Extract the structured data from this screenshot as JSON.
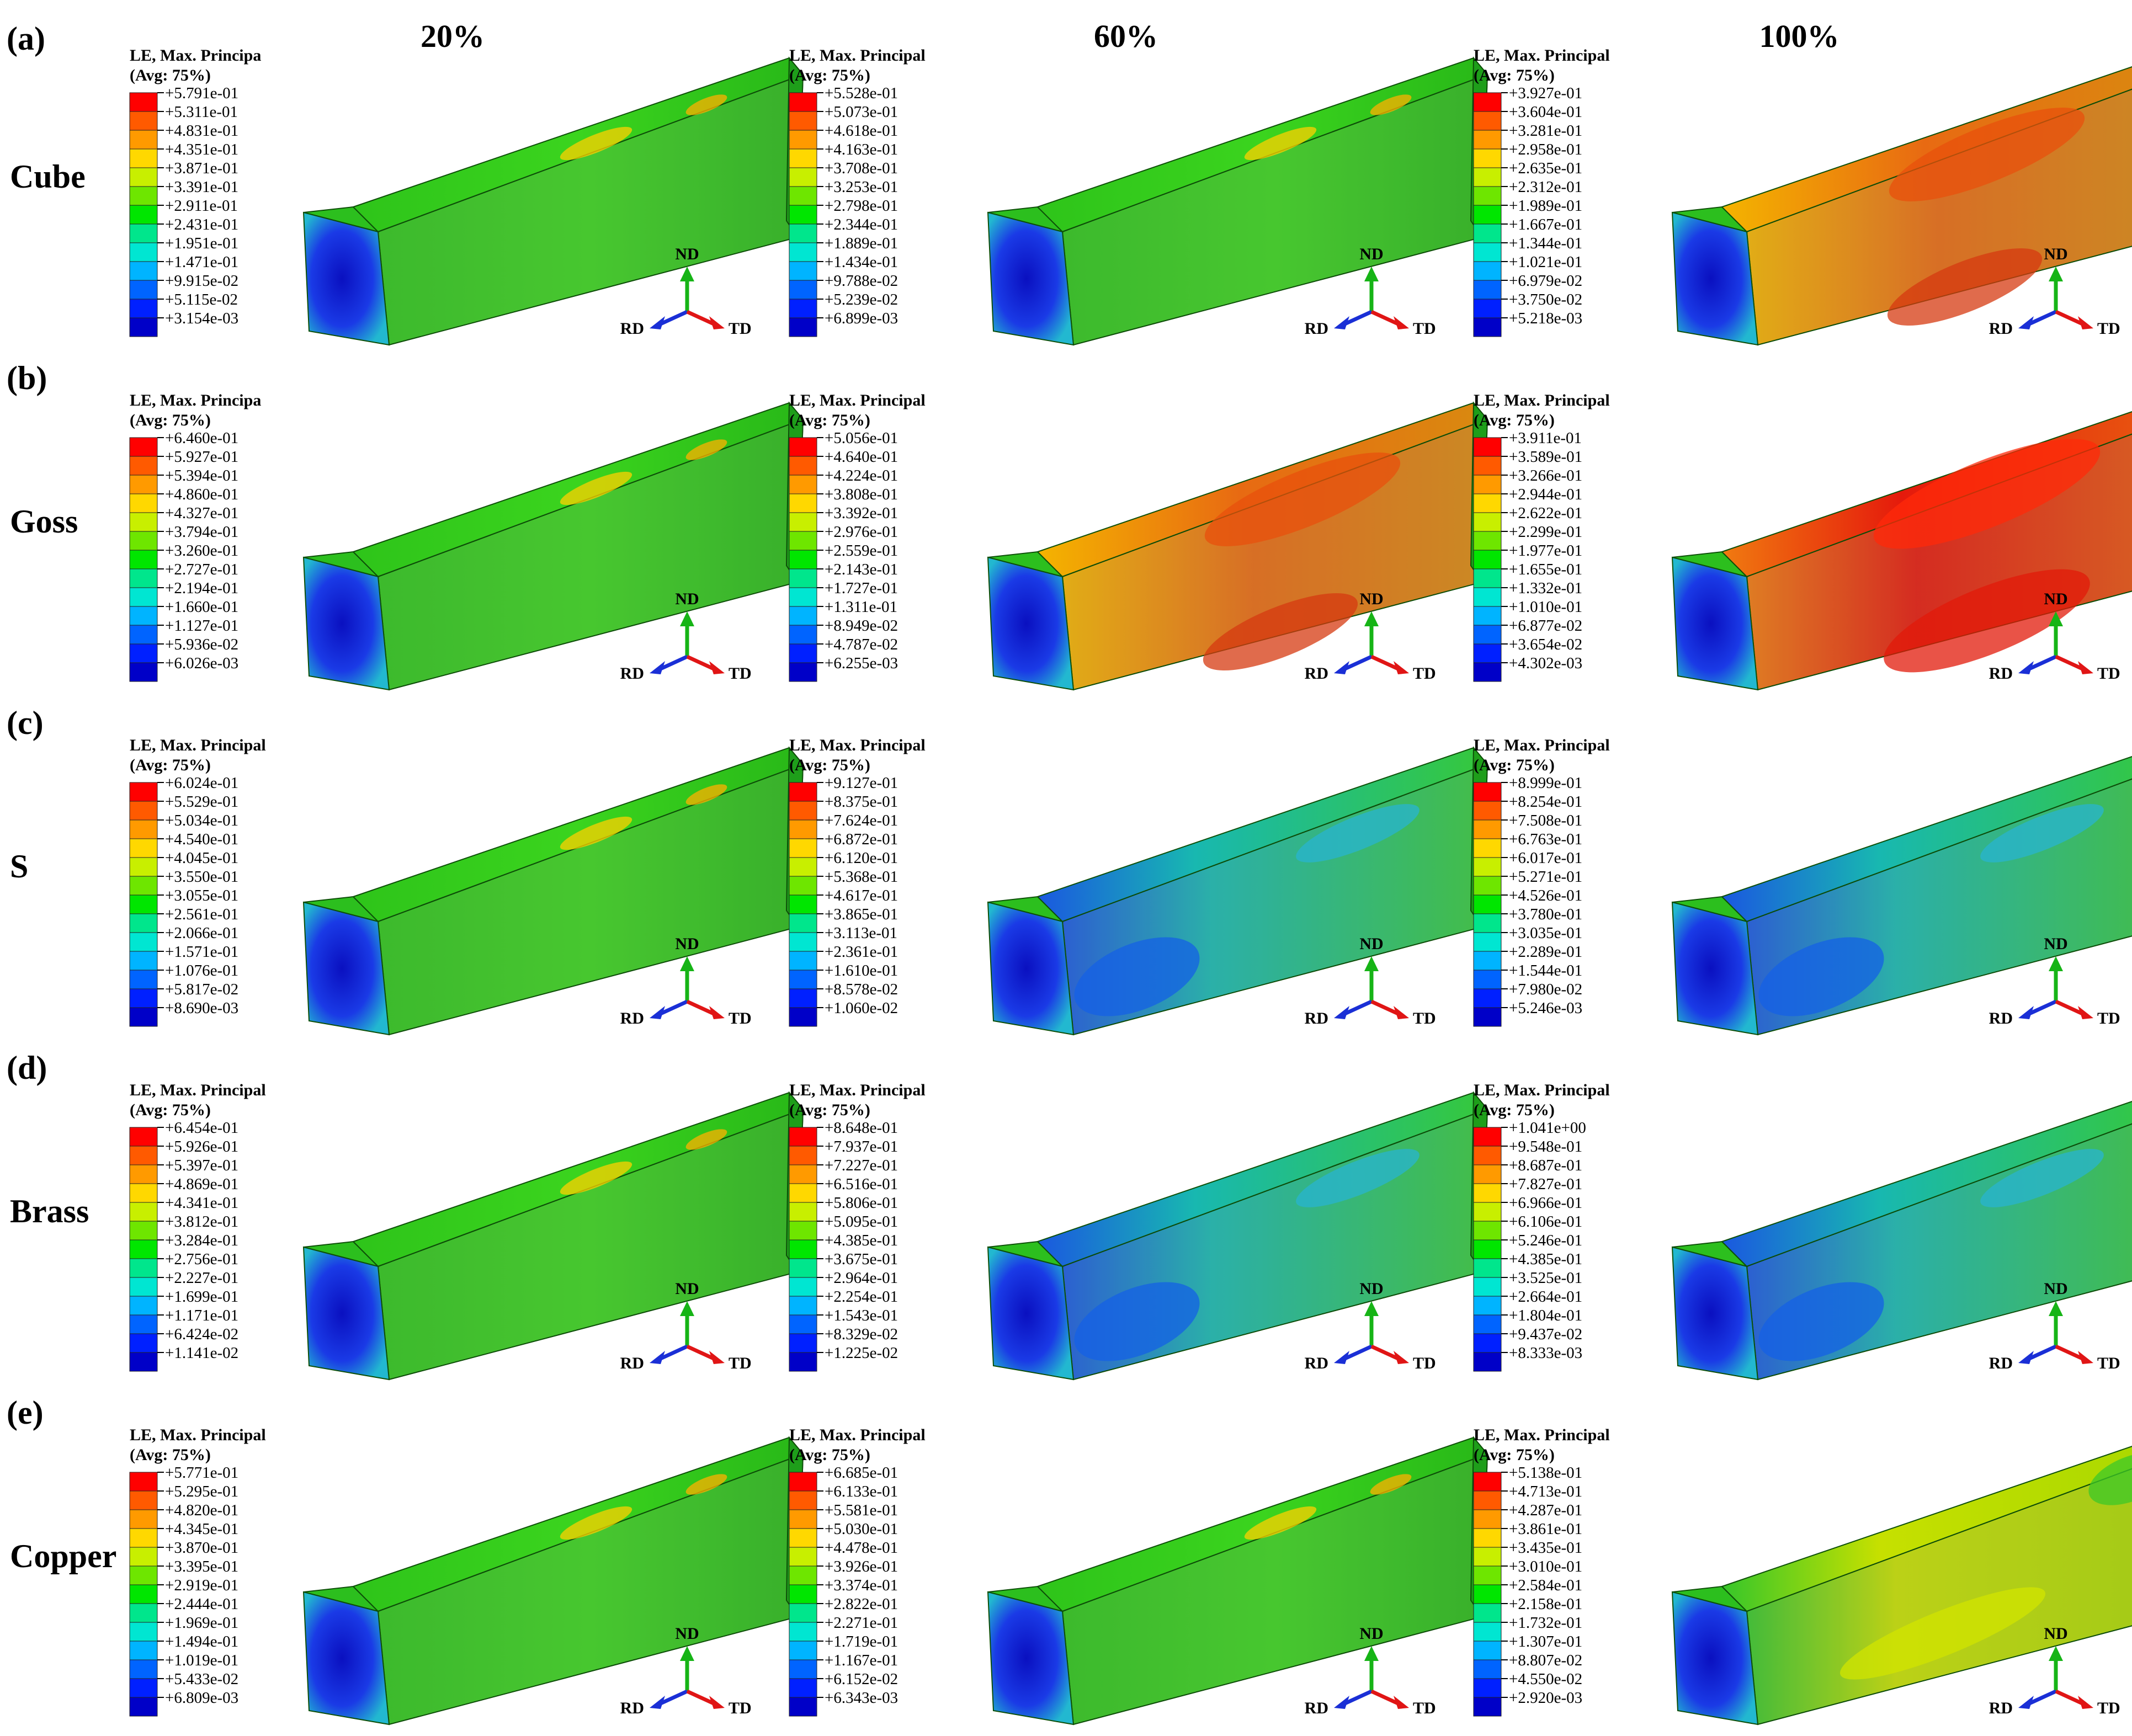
{
  "columns": [
    "20%",
    "60%",
    "100%"
  ],
  "rows": [
    {
      "tag": "(a)",
      "name": "Cube",
      "legends": [
        {
          "title": "LE, Max. Principa",
          "avg": "(Avg: 75%)",
          "values": [
            "+5.791e-01",
            "+5.311e-01",
            "+4.831e-01",
            "+4.351e-01",
            "+3.871e-01",
            "+3.391e-01",
            "+2.911e-01",
            "+2.431e-01",
            "+1.951e-01",
            "+1.471e-01",
            "+9.915e-02",
            "+5.115e-02",
            "+3.154e-03"
          ]
        },
        {
          "title": "LE, Max. Principal",
          "avg": "(Avg: 75%)",
          "values": [
            "+5.528e-01",
            "+5.073e-01",
            "+4.618e-01",
            "+4.163e-01",
            "+3.708e-01",
            "+3.253e-01",
            "+2.798e-01",
            "+2.344e-01",
            "+1.889e-01",
            "+1.434e-01",
            "+9.788e-02",
            "+5.239e-02",
            "+6.899e-03"
          ]
        },
        {
          "title": "LE, Max. Principal",
          "avg": "(Avg: 75%)",
          "values": [
            "+3.927e-01",
            "+3.604e-01",
            "+3.281e-01",
            "+2.958e-01",
            "+2.635e-01",
            "+2.312e-01",
            "+1.989e-01",
            "+1.667e-01",
            "+1.344e-01",
            "+1.021e-01",
            "+6.979e-02",
            "+3.750e-02",
            "+5.218e-03"
          ]
        }
      ]
    },
    {
      "tag": "(b)",
      "name": "Goss",
      "legends": [
        {
          "title": "LE, Max. Principa",
          "avg": "(Avg: 75%)",
          "values": [
            "+6.460e-01",
            "+5.927e-01",
            "+5.394e-01",
            "+4.860e-01",
            "+4.327e-01",
            "+3.794e-01",
            "+3.260e-01",
            "+2.727e-01",
            "+2.194e-01",
            "+1.660e-01",
            "+1.127e-01",
            "+5.936e-02",
            "+6.026e-03"
          ]
        },
        {
          "title": "LE, Max. Principal",
          "avg": "(Avg: 75%)",
          "values": [
            "+5.056e-01",
            "+4.640e-01",
            "+4.224e-01",
            "+3.808e-01",
            "+3.392e-01",
            "+2.976e-01",
            "+2.559e-01",
            "+2.143e-01",
            "+1.727e-01",
            "+1.311e-01",
            "+8.949e-02",
            "+4.787e-02",
            "+6.255e-03"
          ]
        },
        {
          "title": "LE, Max. Principal",
          "avg": "(Avg: 75%)",
          "values": [
            "+3.911e-01",
            "+3.589e-01",
            "+3.266e-01",
            "+2.944e-01",
            "+2.622e-01",
            "+2.299e-01",
            "+1.977e-01",
            "+1.655e-01",
            "+1.332e-01",
            "+1.010e-01",
            "+6.877e-02",
            "+3.654e-02",
            "+4.302e-03"
          ]
        }
      ]
    },
    {
      "tag": "(c)",
      "name": "S",
      "legends": [
        {
          "title": "LE, Max. Principal",
          "avg": "(Avg: 75%)",
          "values": [
            "+6.024e-01",
            "+5.529e-01",
            "+5.034e-01",
            "+4.540e-01",
            "+4.045e-01",
            "+3.550e-01",
            "+3.055e-01",
            "+2.561e-01",
            "+2.066e-01",
            "+1.571e-01",
            "+1.076e-01",
            "+5.817e-02",
            "+8.690e-03"
          ]
        },
        {
          "title": "LE, Max. Principal",
          "avg": "(Avg: 75%)",
          "values": [
            "+9.127e-01",
            "+8.375e-01",
            "+7.624e-01",
            "+6.872e-01",
            "+6.120e-01",
            "+5.368e-01",
            "+4.617e-01",
            "+3.865e-01",
            "+3.113e-01",
            "+2.361e-01",
            "+1.610e-01",
            "+8.578e-02",
            "+1.060e-02"
          ]
        },
        {
          "title": "LE, Max. Principal",
          "avg": "(Avg: 75%)",
          "values": [
            "+8.999e-01",
            "+8.254e-01",
            "+7.508e-01",
            "+6.763e-01",
            "+6.017e-01",
            "+5.271e-01",
            "+4.526e-01",
            "+3.780e-01",
            "+3.035e-01",
            "+2.289e-01",
            "+1.544e-01",
            "+7.980e-02",
            "+5.246e-03"
          ]
        }
      ]
    },
    {
      "tag": "(d)",
      "name": "Brass",
      "legends": [
        {
          "title": "LE, Max. Principal",
          "avg": "(Avg: 75%)",
          "values": [
            "+6.454e-01",
            "+5.926e-01",
            "+5.397e-01",
            "+4.869e-01",
            "+4.341e-01",
            "+3.812e-01",
            "+3.284e-01",
            "+2.756e-01",
            "+2.227e-01",
            "+1.699e-01",
            "+1.171e-01",
            "+6.424e-02",
            "+1.141e-02"
          ]
        },
        {
          "title": "LE, Max. Principal",
          "avg": "(Avg: 75%)",
          "values": [
            "+8.648e-01",
            "+7.937e-01",
            "+7.227e-01",
            "+6.516e-01",
            "+5.806e-01",
            "+5.095e-01",
            "+4.385e-01",
            "+3.675e-01",
            "+2.964e-01",
            "+2.254e-01",
            "+1.543e-01",
            "+8.329e-02",
            "+1.225e-02"
          ]
        },
        {
          "title": "LE, Max. Principal",
          "avg": "(Avg: 75%)",
          "values": [
            "+1.041e+00",
            "+9.548e-01",
            "+8.687e-01",
            "+7.827e-01",
            "+6.966e-01",
            "+6.106e-01",
            "+5.246e-01",
            "+4.385e-01",
            "+3.525e-01",
            "+2.664e-01",
            "+1.804e-01",
            "+9.437e-02",
            "+8.333e-03"
          ]
        }
      ]
    },
    {
      "tag": "(e)",
      "name": "Copper",
      "legends": [
        {
          "title": "LE, Max. Principal",
          "avg": "(Avg: 75%)",
          "values": [
            "+5.771e-01",
            "+5.295e-01",
            "+4.820e-01",
            "+4.345e-01",
            "+3.870e-01",
            "+3.395e-01",
            "+2.919e-01",
            "+2.444e-01",
            "+1.969e-01",
            "+1.494e-01",
            "+1.019e-01",
            "+5.433e-02",
            "+6.809e-03"
          ]
        },
        {
          "title": "LE, Max. Principal",
          "avg": "(Avg: 75%)",
          "values": [
            "+6.685e-01",
            "+6.133e-01",
            "+5.581e-01",
            "+5.030e-01",
            "+4.478e-01",
            "+3.926e-01",
            "+3.374e-01",
            "+2.822e-01",
            "+2.271e-01",
            "+1.719e-01",
            "+1.167e-01",
            "+6.152e-02",
            "+6.343e-03"
          ]
        },
        {
          "title": "LE, Max. Principal",
          "avg": "(Avg: 75%)",
          "values": [
            "+5.138e-01",
            "+4.713e-01",
            "+4.287e-01",
            "+3.861e-01",
            "+3.435e-01",
            "+3.010e-01",
            "+2.584e-01",
            "+2.158e-01",
            "+1.732e-01",
            "+1.307e-01",
            "+8.807e-02",
            "+4.550e-02",
            "+2.920e-03"
          ]
        }
      ]
    }
  ],
  "axes": {
    "up": "ND",
    "left": "RD",
    "right": "TD"
  },
  "colors": {
    "scale": [
      "#ff0000",
      "#ff5a00",
      "#ff9a00",
      "#ffd800",
      "#c8ef00",
      "#6ee600",
      "#00e600",
      "#00e68c",
      "#00e6d2",
      "#00b4ff",
      "#0064ff",
      "#0020ff",
      "#0000c8"
    ],
    "axis_nd": "#16b416",
    "axis_rd": "#1a2fd6",
    "axis_td": "#e01515"
  },
  "specimens": [
    [
      "green",
      "green",
      "orange"
    ],
    [
      "green",
      "orange",
      "red"
    ],
    [
      "green",
      "cyan",
      "cyan"
    ],
    [
      "green",
      "cyan",
      "cyan"
    ],
    [
      "green",
      "green",
      "yellow"
    ]
  ]
}
